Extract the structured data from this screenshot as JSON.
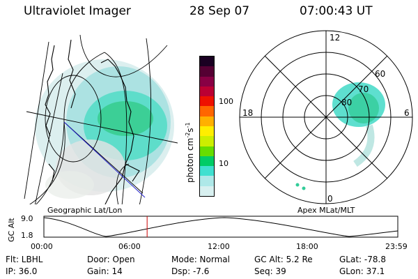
{
  "header": {
    "instrument": "Ultraviolet Imager",
    "date": "28 Sep 07",
    "time": "07:00:43 UT"
  },
  "geo_panel": {
    "label": "Geographic Lat/Lon"
  },
  "polar_panel": {
    "label": "Apex MLat/MLT",
    "mlt_labels": [
      "12",
      "18",
      "6",
      "0"
    ],
    "lat_labels": [
      "60",
      "70",
      "80"
    ]
  },
  "colorbar": {
    "label": "photon cm",
    "exp1": "-2",
    "label_s": "s",
    "exp2": "-1",
    "ticks": [
      "100",
      "10"
    ],
    "colors": [
      "#d8f0f0",
      "#aee8e8",
      "#40e0d0",
      "#00cc66",
      "#66dd00",
      "#ccee00",
      "#ffee00",
      "#ffb000",
      "#ff6600",
      "#ee1100",
      "#bb0033",
      "#880044",
      "#550033",
      "#1a0022"
    ]
  },
  "alt_plot": {
    "ylabel": "GC Alt",
    "ymax": "9.0",
    "ymin": "1.8",
    "xticks": [
      "00:00",
      "06:00",
      "12:00",
      "18:00",
      "23:59"
    ],
    "current_hour": 7.0
  },
  "info": {
    "filter": "Flt: LBHL",
    "ip": "IP: 36.0",
    "door": "Door: Open",
    "gain": "Gain: 14",
    "mode": "Mode: Normal",
    "dsp": "Dsp:    -7.6",
    "gc_alt": "GC Alt: 5.2 Re",
    "seq": "Seq: 39",
    "glat": "GLat: -78.8",
    "glon": "GLon:  37.1"
  }
}
